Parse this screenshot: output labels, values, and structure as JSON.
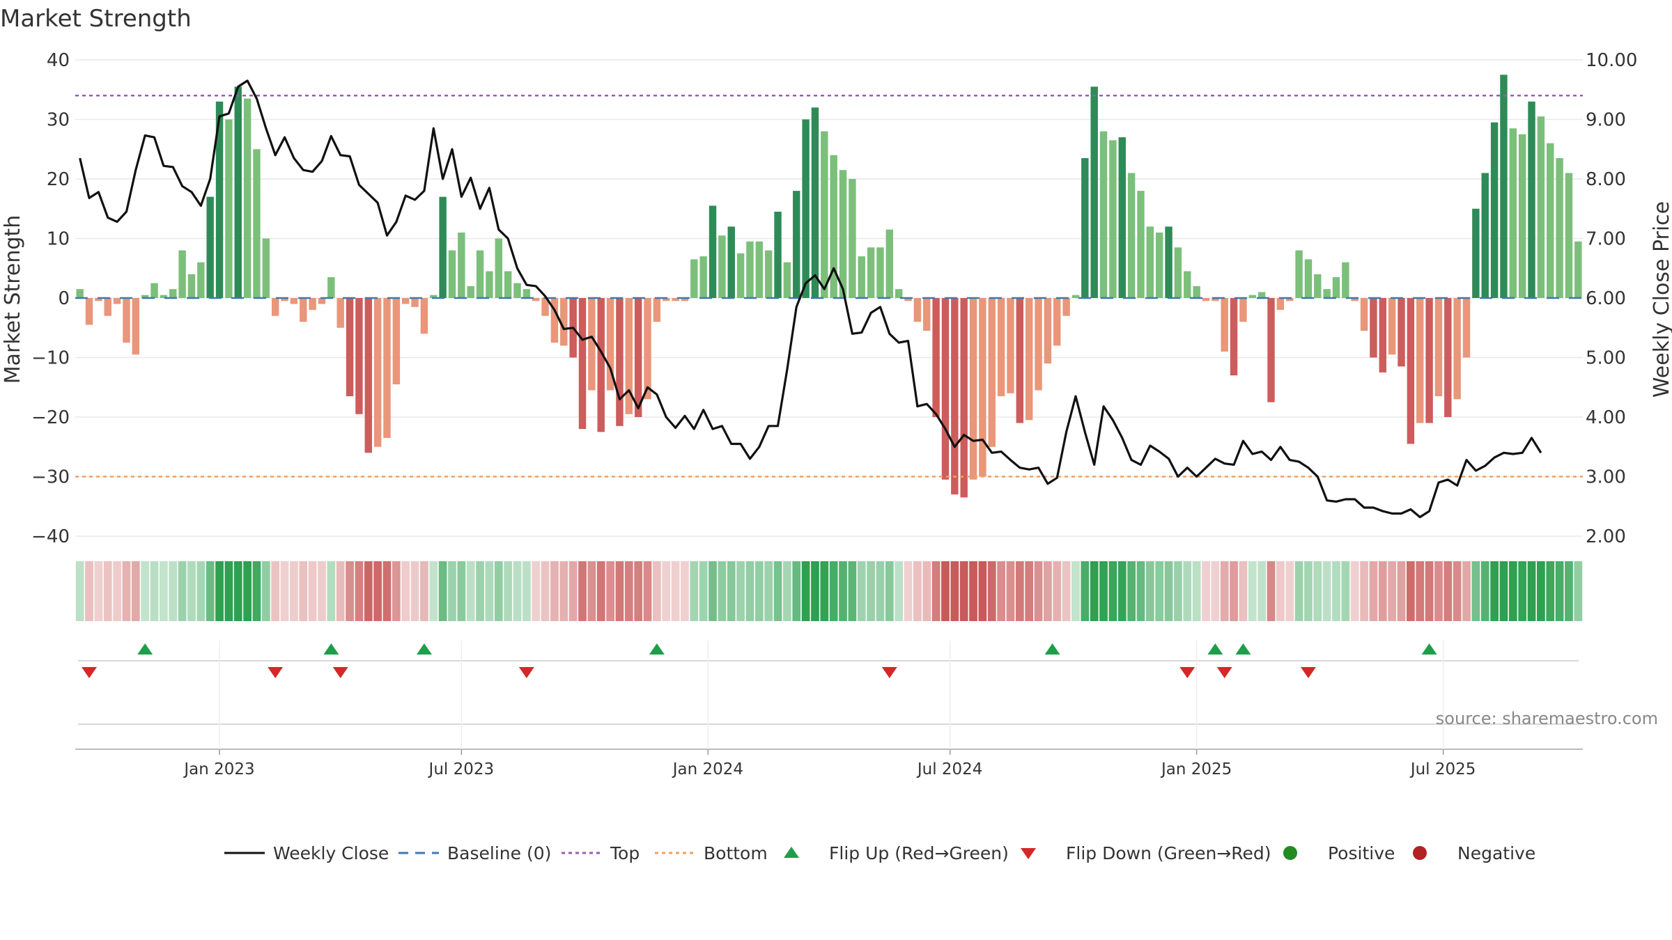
{
  "chart_data": {
    "type": "bar+line",
    "title": "Market Strength",
    "ylabel_left": "Market Strength",
    "ylabel_right": "Weekly Close Price",
    "ylim_left": [
      -40,
      40
    ],
    "ylim_right": [
      2.0,
      10.0
    ],
    "yticks_left": [
      "40",
      "30",
      "20",
      "10",
      "0",
      "−10",
      "−20",
      "−30",
      "−40"
    ],
    "yticks_left_values": [
      40,
      30,
      20,
      10,
      0,
      -10,
      -20,
      -30,
      -40
    ],
    "yticks_right": [
      "10.00",
      "9.00",
      "8.00",
      "7.00",
      "6.00",
      "5.00",
      "4.00",
      "3.00",
      "2.00"
    ],
    "yticks_right_values": [
      10,
      9,
      8,
      7,
      6,
      5,
      4,
      3,
      2
    ],
    "x_ticks": [
      "Jan 2023",
      "Jul 2023",
      "Jan 2024",
      "Jul 2024",
      "Jan 2025",
      "Jul 2025"
    ],
    "x_tick_weeks": [
      15,
      41,
      67.5,
      93.5,
      120,
      146.5
    ],
    "top_level": 34,
    "bottom_level": -30,
    "source": "source: sharemaestro.com",
    "strength": [
      1.5,
      -4.5,
      -0.5,
      -3,
      -1,
      -7.5,
      -9.5,
      0.5,
      2.5,
      0.5,
      1.5,
      8,
      4,
      6,
      17,
      33,
      30,
      35.5,
      33.5,
      25,
      10,
      -3,
      -0.5,
      -1,
      -4,
      -2,
      -1,
      3.5,
      -5,
      -16.5,
      -19.5,
      -26,
      -25,
      -23.5,
      -14.5,
      -1,
      -1.5,
      -6,
      0.5,
      17,
      8,
      11,
      2,
      8,
      4.5,
      10,
      4.5,
      2.5,
      1.5,
      -0.5,
      -3,
      -7.5,
      -8,
      -10,
      -22,
      -15.5,
      -22.5,
      -15.5,
      -21.5,
      -19.5,
      -20,
      -17,
      -4,
      -0.5,
      -0.5,
      -0.5,
      6.5,
      7,
      15.5,
      10.5,
      12,
      7.5,
      9.5,
      9.5,
      8,
      14.5,
      6,
      18,
      30,
      32,
      28,
      24,
      21.5,
      20,
      7,
      8.5,
      8.5,
      11.5,
      1.5,
      -0.5,
      -4,
      -5.5,
      -20,
      -30.5,
      -33,
      -33.5,
      -30.5,
      -30,
      -25,
      -16.5,
      -16,
      -21,
      -20.5,
      -15.5,
      -11,
      -8,
      -3,
      0.5,
      23.5,
      35.5,
      28,
      26.5,
      27,
      21,
      18,
      12,
      11,
      12,
      8.5,
      4.5,
      2,
      -0.5,
      -0.5,
      -9,
      -13,
      -4,
      0.5,
      1,
      -17.5,
      -2,
      -0.5,
      8,
      6.5,
      4,
      1.5,
      3.5,
      6,
      -0.5,
      -5.5,
      -10,
      -12.5,
      -9.5,
      -11.5,
      -24.5,
      -21,
      -21,
      -16.5,
      -20,
      -17,
      -10,
      15,
      21,
      29.5,
      37.5,
      28.5,
      27.5,
      33,
      30.5,
      26,
      23.5,
      21,
      9.5
    ],
    "weekly_close": [
      8.35,
      7.68,
      7.78,
      7.35,
      7.28,
      7.45,
      8.15,
      8.73,
      8.7,
      8.22,
      8.2,
      7.88,
      7.78,
      7.55,
      8.0,
      9.05,
      9.1,
      9.55,
      9.65,
      9.35,
      8.85,
      8.4,
      8.7,
      8.35,
      8.15,
      8.12,
      8.3,
      8.72,
      8.4,
      8.38,
      7.9,
      7.75,
      7.6,
      7.05,
      7.28,
      7.72,
      7.65,
      7.8,
      8.85,
      8.0,
      8.5,
      7.7,
      8.02,
      7.5,
      7.85,
      7.15,
      7.0,
      6.5,
      6.22,
      6.2,
      6.03,
      5.8,
      5.48,
      5.5,
      5.3,
      5.35,
      5.1,
      4.82,
      4.3,
      4.45,
      4.15,
      4.5,
      4.38,
      4.0,
      3.82,
      4.02,
      3.8,
      4.12,
      3.8,
      3.85,
      3.55,
      3.55,
      3.3,
      3.5,
      3.85,
      3.85,
      4.8,
      5.85,
      6.25,
      6.38,
      6.15,
      6.5,
      6.15,
      5.4,
      5.42,
      5.75,
      5.85,
      5.4,
      5.25,
      5.28,
      4.18,
      4.22,
      4.05,
      3.8,
      3.5,
      3.7,
      3.6,
      3.62,
      3.4,
      3.42,
      3.28,
      3.15,
      3.12,
      3.15,
      2.88,
      2.98,
      3.75,
      4.35,
      3.75,
      3.2,
      4.18,
      3.95,
      3.65,
      3.28,
      3.2,
      3.52,
      3.42,
      3.3,
      3.0,
      3.15,
      3.0,
      3.15,
      3.3,
      3.22,
      3.2,
      3.6,
      3.38,
      3.42,
      3.28,
      3.5,
      3.28,
      3.25,
      3.15,
      3.0,
      2.6,
      2.58,
      2.62,
      2.62,
      2.48,
      2.48,
      2.42,
      2.38,
      2.38,
      2.45,
      2.32,
      2.42,
      2.9,
      2.95,
      2.85,
      3.28,
      3.1,
      3.18,
      3.32,
      3.4,
      3.38,
      3.4,
      3.65,
      3.4
    ],
    "flip_up_weeks": [
      7,
      27,
      37,
      62,
      104.5,
      122,
      125,
      145
    ],
    "flip_down_weeks": [
      1,
      21,
      28,
      48,
      87,
      119,
      123,
      132
    ],
    "legend": [
      "Weekly Close",
      "Baseline (0)",
      "Top",
      "Bottom",
      "Flip Up (Red→Green)",
      "Flip Down (Green→Red)",
      "Positive",
      "Negative"
    ],
    "colors": {
      "strong_green": "#2e8b57",
      "light_green": "#7bbf7b",
      "strong_red": "#cd5c5c",
      "light_red": "#e9967a",
      "line": "#111111",
      "baseline": "#3a78b5",
      "top": "#9b59b6",
      "bottom": "#f0a060",
      "flip_up": "#1f9e4a",
      "flip_down": "#d62728",
      "positive_dot": "#228b22",
      "negative_dot": "#b22222"
    }
  }
}
